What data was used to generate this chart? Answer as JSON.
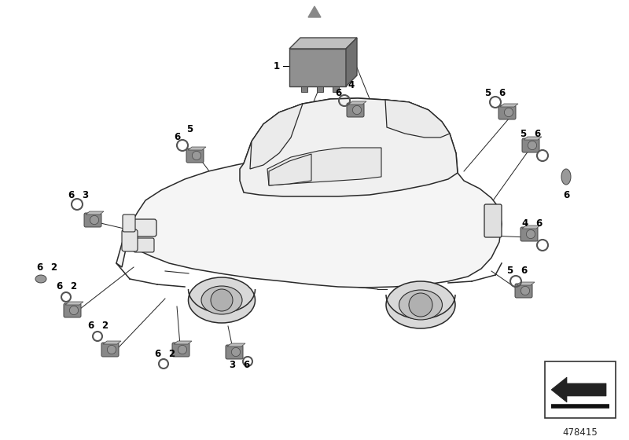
{
  "bg_color": "#ffffff",
  "part_number": "478415",
  "outline_color": "#2a2a2a",
  "sensor_color": "#888888",
  "sensor_dark": "#666666",
  "sensor_light": "#aaaaaa",
  "car_fill": "#f5f5f5",
  "car_outline": "#2a2a2a",
  "lw_car": 1.1,
  "module_color": "#808080",
  "fig_width": 8.0,
  "fig_height": 5.6,
  "dpi": 100
}
